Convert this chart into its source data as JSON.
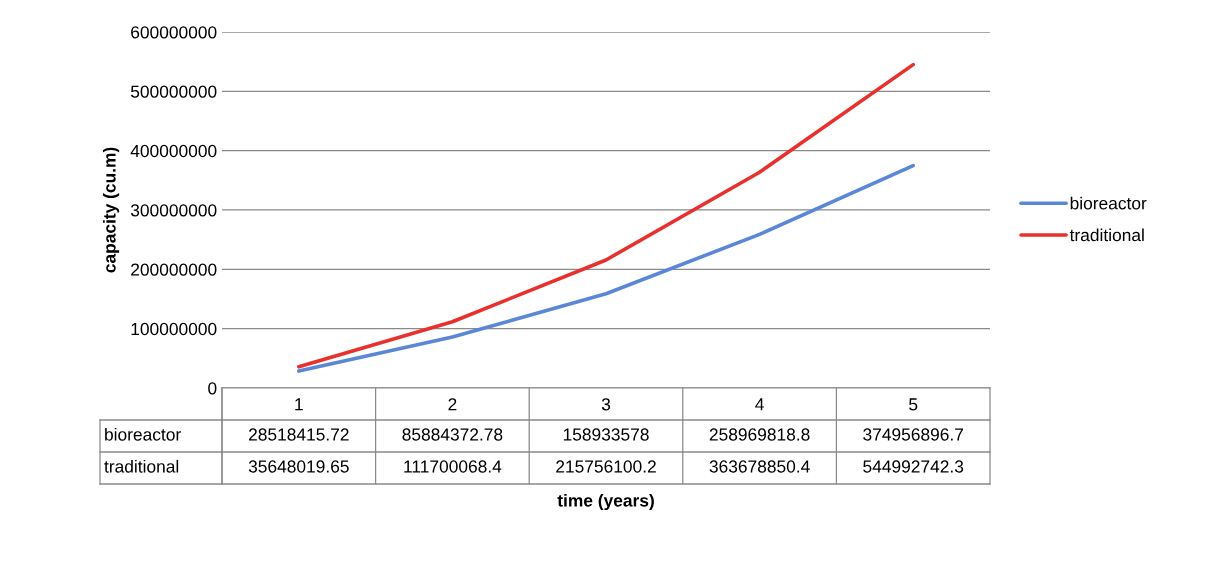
{
  "chart_data": {
    "type": "line",
    "xlabel": "time (years)",
    "ylabel": "capacity (cu.m)",
    "categories": [
      "1",
      "2",
      "3",
      "4",
      "5"
    ],
    "series": [
      {
        "name": "bioreactor",
        "color": "#5b87d6",
        "values": [
          28518415.72,
          85884372.78,
          158933578,
          258969818.8,
          374956896.7
        ]
      },
      {
        "name": "traditional",
        "color": "#e8312f",
        "values": [
          35648019.65,
          111700068.4,
          215756100.2,
          363678850.4,
          544992742.3
        ]
      }
    ],
    "ylim": [
      0,
      600000000
    ],
    "yticks": [
      0,
      100000000,
      200000000,
      300000000,
      400000000,
      500000000,
      600000000
    ],
    "grid": "y",
    "legend": "right",
    "data_labels": true,
    "marker": "none",
    "line_style": "solid"
  }
}
